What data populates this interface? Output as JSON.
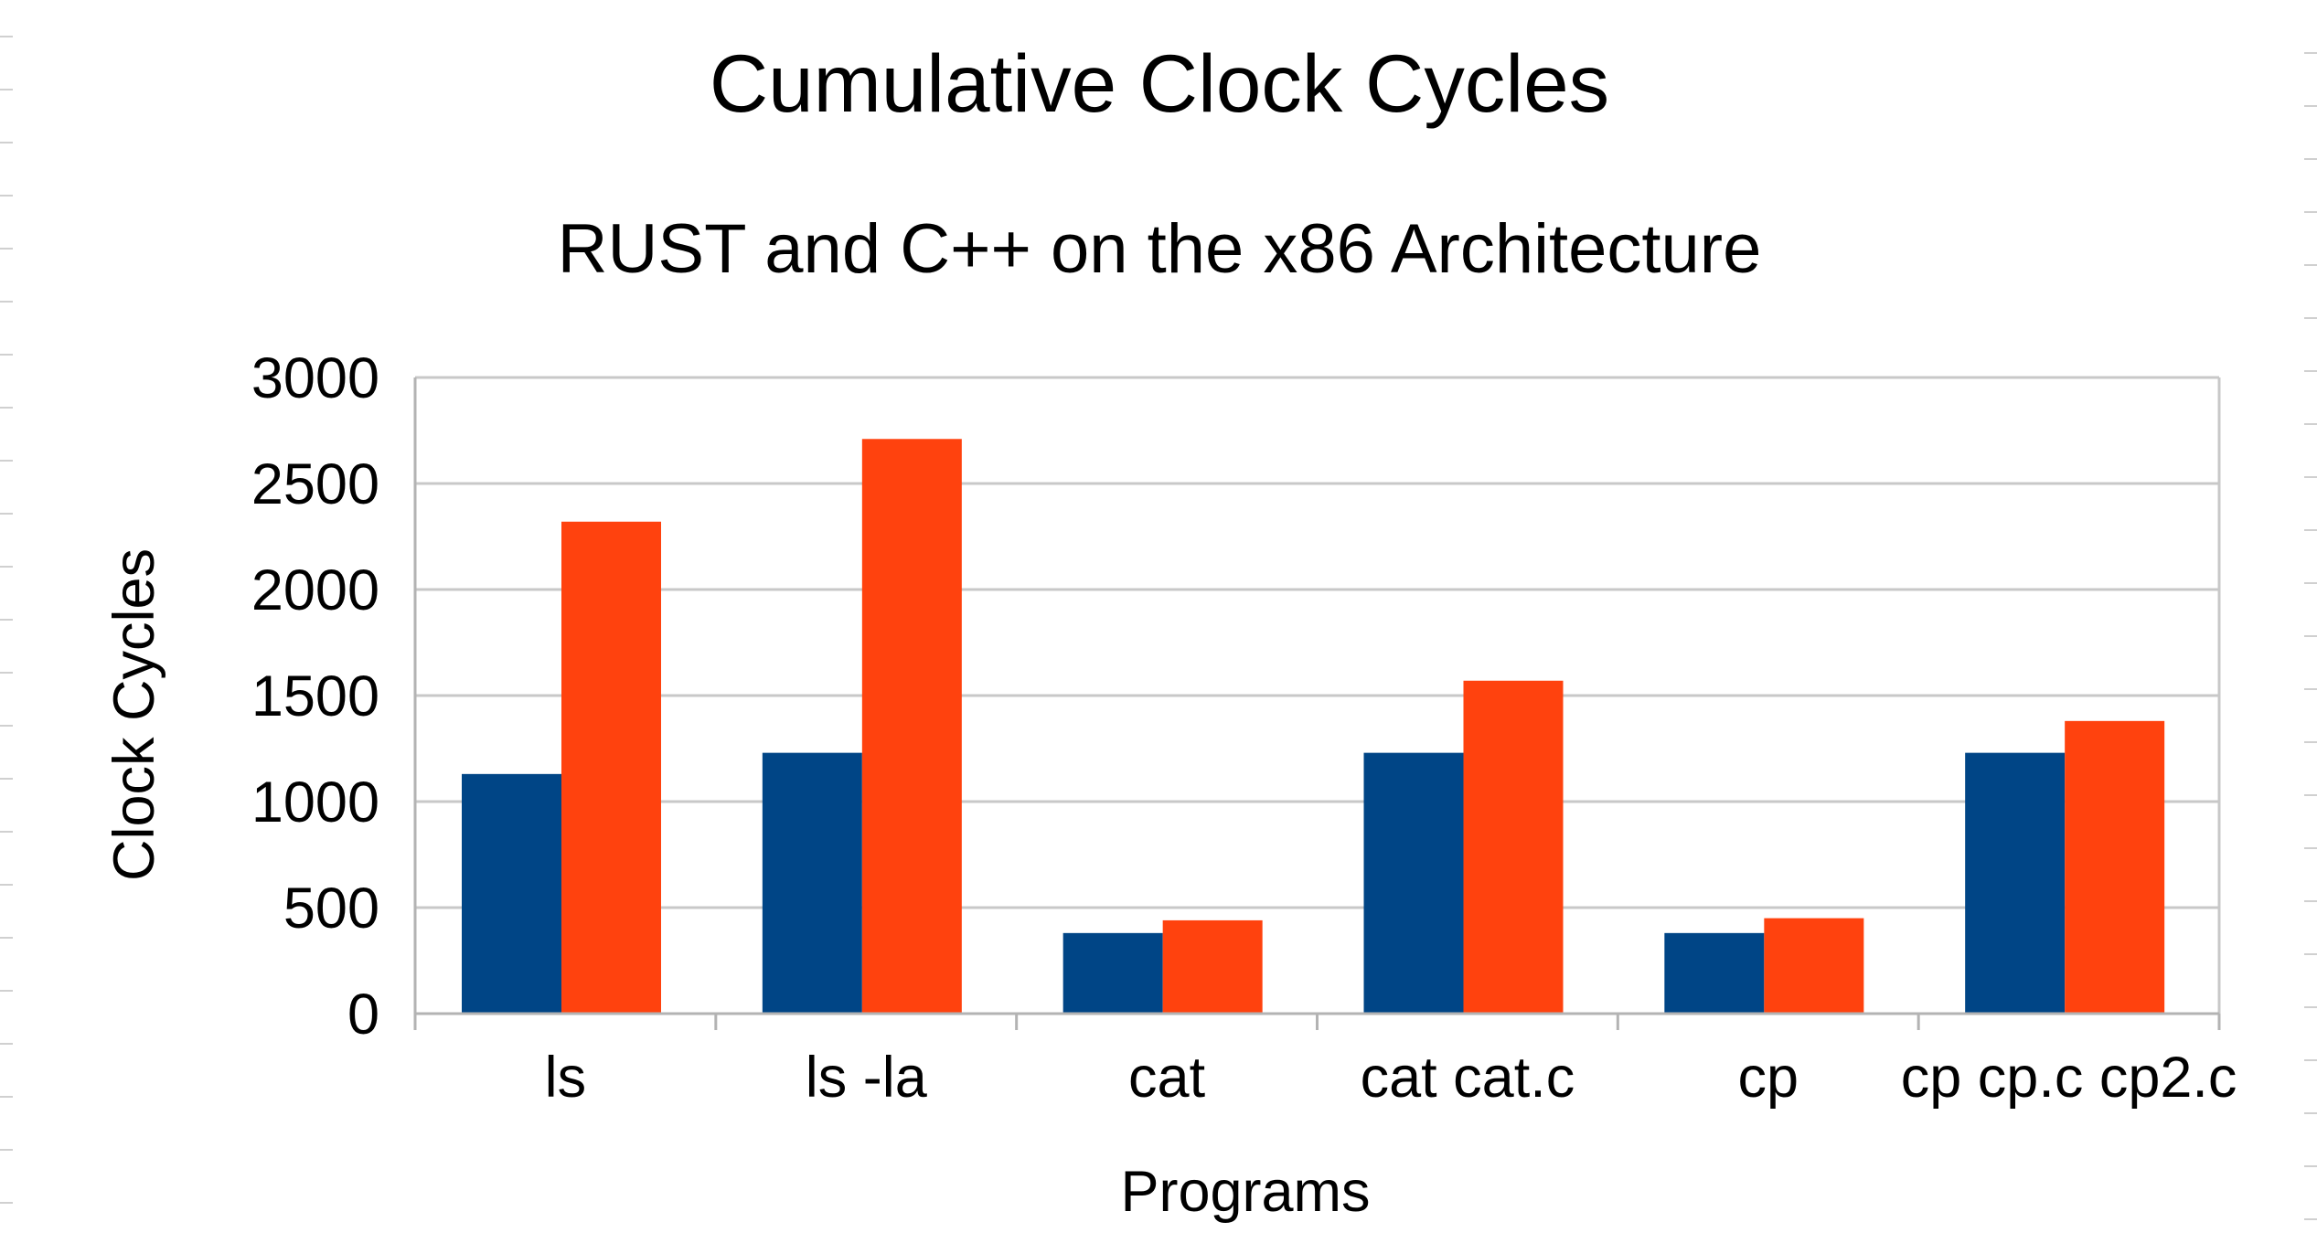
{
  "chart_data": {
    "type": "bar",
    "title": "Cumulative Clock Cycles",
    "subtitle": "RUST and C++ on the x86 Architecture",
    "xlabel": "Programs",
    "ylabel": "Clock Cycles",
    "categories": [
      "ls",
      "ls -la",
      "cat",
      "cat cat.c",
      "cp",
      "cp cp.c cp2.c"
    ],
    "series": [
      {
        "values": [
          1130,
          1230,
          380,
          1230,
          380,
          1230
        ],
        "color": "#004586"
      },
      {
        "values": [
          2320,
          2710,
          440,
          1570,
          450,
          1380
        ],
        "color": "#ff420e"
      }
    ],
    "ylim": [
      0,
      3000
    ],
    "yticks": [
      0,
      500,
      1000,
      1500,
      2000,
      2500,
      3000
    ],
    "grid": true,
    "legend": "none"
  },
  "colors": {
    "gridline": "#c8c8c8",
    "axis": "#b3b3b3",
    "text": "#000000",
    "edge_ticks": "#d0d0d0"
  }
}
